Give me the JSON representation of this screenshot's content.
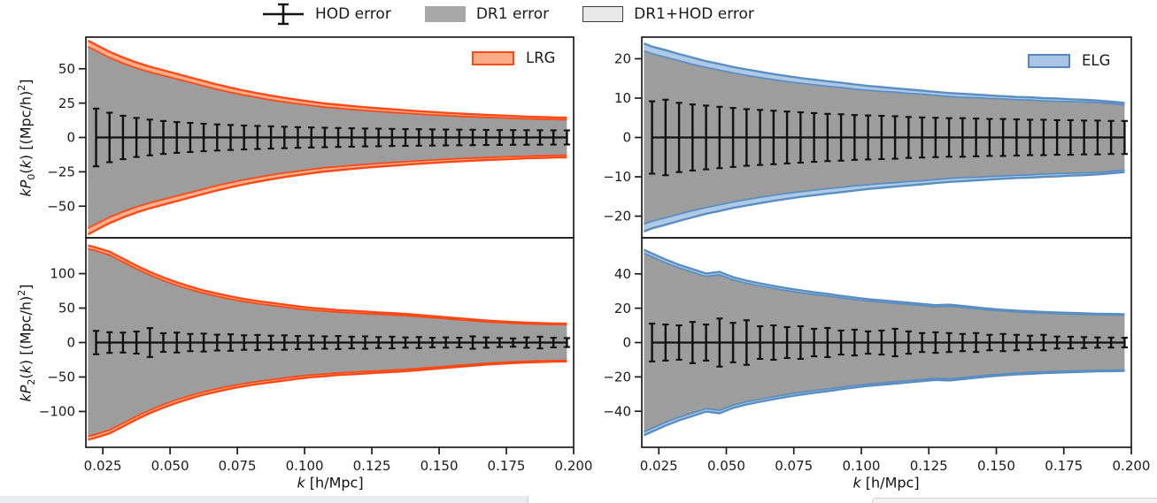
{
  "figure_legend": {
    "entries": [
      {
        "type": "errorbar",
        "label": "HOD error",
        "line_color": "#111111"
      },
      {
        "type": "patch",
        "label": "DR1 error",
        "fill": "#a8a8a8"
      },
      {
        "type": "patch",
        "label": "DR1+HOD error",
        "fill": "#e8e8e8",
        "edge": "#3c3c3c"
      }
    ]
  },
  "panels_shared": {
    "x_label": {
      "kvar": "k",
      "unit": " [h/Mpc]"
    },
    "xlim": [
      0.0187,
      0.2
    ],
    "x_ticks": [
      0.025,
      0.05,
      0.075,
      0.1,
      0.125,
      0.15,
      0.175,
      0.2
    ],
    "x_tick_labels": [
      "0.025",
      "0.050",
      "0.075",
      "0.100",
      "0.125",
      "0.150",
      "0.175",
      "0.200"
    ],
    "k_band": [
      0.0195,
      0.0225,
      0.0275,
      0.0325,
      0.0375,
      0.0425,
      0.0475,
      0.0525,
      0.0575,
      0.0625,
      0.0675,
      0.0725,
      0.0775,
      0.0825,
      0.0875,
      0.0925,
      0.0975,
      0.1025,
      0.1075,
      0.1125,
      0.1175,
      0.1225,
      0.1275,
      0.1325,
      0.1375,
      0.1425,
      0.1475,
      0.1525,
      0.1575,
      0.1625,
      0.1675,
      0.1725,
      0.1775,
      0.1825,
      0.1875,
      0.1925,
      0.1975
    ],
    "k_err": [
      0.0225,
      0.0275,
      0.0325,
      0.0375,
      0.0425,
      0.0475,
      0.0525,
      0.0575,
      0.0625,
      0.0675,
      0.0725,
      0.0775,
      0.0825,
      0.0875,
      0.0925,
      0.0975,
      0.1025,
      0.1075,
      0.1125,
      0.1175,
      0.1225,
      0.1275,
      0.1325,
      0.1375,
      0.1425,
      0.1475,
      0.1525,
      0.1575,
      0.1625,
      0.1675,
      0.1725,
      0.1775,
      0.1825,
      0.1875,
      0.1925,
      0.1975
    ],
    "gray_fill": "#9d9d9d",
    "errorbar_color": "#111111"
  },
  "chart_data": [
    {
      "id": "lrg-p0",
      "type": "band+errorbar",
      "position": "top-left",
      "tracer": "LRG",
      "ylabel": {
        "pre": "kP",
        "sub": "0",
        "open": "(",
        "kvar": "k",
        "mid": ") [(Mpc/h)",
        "sup": "2",
        "post": "]"
      },
      "ylim": [
        -73,
        73
      ],
      "yticks": [
        -50,
        -25,
        0,
        25,
        50
      ],
      "ytick_labels": [
        "−50",
        "−25",
        "0",
        "25",
        "50"
      ],
      "legend": {
        "label": "LRG",
        "fill": "#fcab87",
        "edge": "#fb4917"
      },
      "band": {
        "edge": "#fb4917",
        "fill": "#fcae8a"
      },
      "dr1_upper": [
        66,
        63,
        58,
        54,
        50.5,
        47.5,
        45,
        42.5,
        40,
        37.5,
        35,
        32.8,
        30.8,
        29,
        27.3,
        25.8,
        24.5,
        23.2,
        22,
        21.2,
        20.4,
        19.6,
        18.9,
        18.2,
        17.6,
        17,
        16.4,
        15.9,
        15.4,
        15,
        14.6,
        14.2,
        13.9,
        13.6,
        13.3,
        13.1,
        12.9
      ],
      "dr1hod_upper": [
        70.5,
        67.4,
        62.3,
        58.2,
        54.6,
        51.5,
        48.9,
        46.3,
        43.7,
        41.1,
        38.5,
        36.2,
        34.1,
        32.2,
        30.4,
        28.8,
        27.4,
        26,
        24.7,
        23.8,
        22.9,
        22,
        21.2,
        20.5,
        19.8,
        19.1,
        18.5,
        17.9,
        17.4,
        16.9,
        16.4,
        16,
        15.6,
        15.2,
        14.9,
        14.6,
        14.4
      ],
      "hod_err": [
        21,
        18,
        15.8,
        14.2,
        13,
        12,
        11.2,
        10.6,
        10,
        9.5,
        9.1,
        8.7,
        8.4,
        8.1,
        7.8,
        7.5,
        7.3,
        7.1,
        6.9,
        6.7,
        6.5,
        6.4,
        6.2,
        6.1,
        6,
        5.9,
        5.8,
        5.7,
        5.6,
        5.5,
        5.4,
        5.35,
        5.3,
        5.25,
        5.2,
        5.15
      ]
    },
    {
      "id": "elg-p0",
      "type": "band+errorbar",
      "position": "top-right",
      "tracer": "ELG",
      "ylabel": null,
      "ylim": [
        -25.5,
        25.5
      ],
      "yticks": [
        -20,
        -10,
        0,
        10,
        20
      ],
      "ytick_labels": [
        "−20",
        "−10",
        "0",
        "10",
        "20"
      ],
      "legend": {
        "label": "ELG",
        "fill": "#a9c5e3",
        "edge": "#5787bd"
      },
      "band": {
        "edge": "#5b8ec0",
        "fill": "#adc9e5"
      },
      "dr1_upper": [
        22,
        21.3,
        20.4,
        19.5,
        18.6,
        17.8,
        17.1,
        16.4,
        15.8,
        15.2,
        14.7,
        14.2,
        13.8,
        13.4,
        13,
        12.7,
        12.3,
        12,
        11.7,
        11.5,
        11.2,
        11,
        10.7,
        10.4,
        10.2,
        10.1,
        9.9,
        9.8,
        9.6,
        9.5,
        9.3,
        9.2,
        9.1,
        9,
        8.9,
        8.6,
        8.3
      ],
      "dr1hod_upper": [
        23.9,
        23.1,
        22.2,
        21.2,
        20.3,
        19.4,
        18.7,
        17.9,
        17.3,
        16.7,
        16.1,
        15.6,
        15.1,
        14.7,
        14.3,
        13.9,
        13.5,
        13.1,
        12.8,
        12.5,
        12.2,
        11.9,
        11.6,
        11.3,
        11.1,
        10.9,
        10.7,
        10.5,
        10.3,
        10.2,
        10,
        9.9,
        9.7,
        9.6,
        9.4,
        9.1,
        8.8
      ],
      "hod_err": [
        9.2,
        9.6,
        8.8,
        8.4,
        8.1,
        7.8,
        7.5,
        7.2,
        7,
        6.8,
        6.6,
        6.4,
        6.2,
        6,
        5.9,
        5.7,
        5.6,
        5.5,
        5.4,
        5.2,
        5.1,
        5,
        4.9,
        4.9,
        4.8,
        4.7,
        4.7,
        4.6,
        4.5,
        4.5,
        4.4,
        4.4,
        4.3,
        4.3,
        4.2,
        4.2
      ]
    },
    {
      "id": "lrg-p2",
      "type": "band+errorbar",
      "position": "bottom-left",
      "tracer": "LRG",
      "ylabel": {
        "pre": "kP",
        "sub": "2",
        "open": "(",
        "kvar": "k",
        "mid": ") [(Mpc/h)",
        "sup": "2",
        "post": "]"
      },
      "ylim": [
        -152,
        152
      ],
      "yticks": [
        -100,
        -50,
        0,
        50,
        100
      ],
      "ytick_labels": [
        "−100",
        "−50",
        "0",
        "50",
        "100"
      ],
      "legend": null,
      "band": {
        "edge": "#fb4917",
        "fill": "#fcae8a"
      },
      "dr1_upper": [
        136,
        133,
        127,
        117,
        107,
        98,
        90,
        83,
        77,
        71.5,
        67,
        63,
        59.5,
        56.5,
        54,
        51.5,
        49,
        47,
        45.5,
        44,
        43,
        42,
        41,
        40,
        39,
        37.5,
        36,
        34.5,
        33,
        31.5,
        30,
        29,
        28,
        27.2,
        26.6,
        26.2,
        26
      ],
      "dr1hod_upper": [
        141,
        137.9,
        131.8,
        121.7,
        111.6,
        102.5,
        94.4,
        87.3,
        81.2,
        75.6,
        71,
        66.9,
        63.3,
        60.2,
        57.6,
        55,
        52.4,
        50.3,
        48.7,
        47.1,
        46,
        44.9,
        43.8,
        42.7,
        41.6,
        40,
        38.4,
        36.8,
        35.2,
        33.6,
        32,
        30.9,
        29.8,
        28.9,
        28.2,
        27.7,
        27.4
      ],
      "hod_err": [
        17,
        15,
        14.5,
        16,
        21,
        13.5,
        14.5,
        12.5,
        13,
        11.5,
        12,
        10.5,
        11,
        10,
        10.5,
        9.5,
        10,
        9,
        9.5,
        8.5,
        9,
        8,
        8.5,
        7.5,
        8,
        7,
        7.5,
        7,
        9,
        7.5,
        6.5,
        6,
        7.5,
        8.5,
        7,
        6.5
      ]
    },
    {
      "id": "elg-p2",
      "type": "band+errorbar",
      "position": "bottom-right",
      "tracer": "ELG",
      "ylabel": null,
      "ylim": [
        -61,
        61
      ],
      "yticks": [
        -40,
        -20,
        0,
        20,
        40
      ],
      "ytick_labels": [
        "−40",
        "−20",
        "0",
        "20",
        "40"
      ],
      "legend": null,
      "band": {
        "edge": "#5b8ec0",
        "fill": "#adc9e5"
      },
      "dr1_upper": [
        52,
        50,
        46.5,
        43.5,
        41,
        38.5,
        39.5,
        36.5,
        34.5,
        33,
        31.5,
        30.2,
        29,
        28,
        27,
        26,
        25,
        24.2,
        23.5,
        22.8,
        22.2,
        21.5,
        20.8,
        21.2,
        20.4,
        19.6,
        18.9,
        18.3,
        17.8,
        17.4,
        17.1,
        16.8,
        16.6,
        16.4,
        16.2,
        16.1,
        16
      ],
      "dr1hod_upper": [
        54,
        51.9,
        48.4,
        45.3,
        42.8,
        40.2,
        41.2,
        38.1,
        36.1,
        34.5,
        33,
        31.6,
        30.4,
        29.3,
        28.3,
        27.2,
        26.2,
        25.3,
        24.6,
        23.9,
        23.2,
        22.5,
        21.8,
        22.1,
        21.3,
        20.5,
        19.7,
        19.1,
        18.6,
        18.2,
        17.8,
        17.5,
        17.3,
        17,
        16.8,
        16.7,
        16.5
      ],
      "hod_err": [
        11,
        10.5,
        10,
        12,
        10.5,
        14,
        11.5,
        13,
        9.5,
        10,
        9,
        9.5,
        8,
        8.5,
        7,
        7.5,
        6.5,
        7,
        8,
        6.5,
        5.5,
        6,
        5.5,
        5,
        5.5,
        4.5,
        5,
        4.5,
        4,
        4.5,
        3.5,
        3.4,
        3.2,
        3,
        2.9,
        2.8
      ]
    }
  ]
}
